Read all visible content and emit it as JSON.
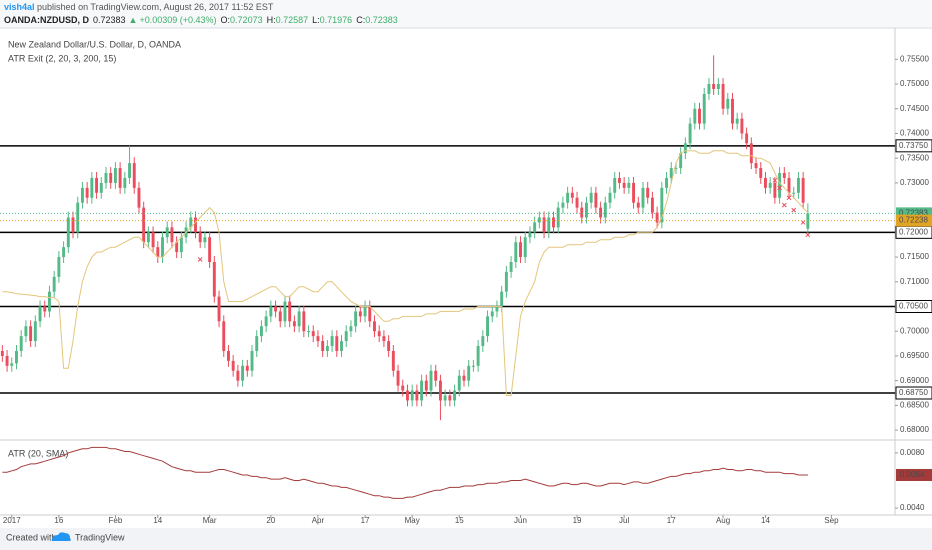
{
  "header": {
    "author": "vish4al",
    "published": " published on TradingView.com, August 26, 2017 11:52 EST",
    "symbol": "OANDA:NZDUSD, D",
    "price": "0.72383",
    "arrow": "▲",
    "change": "+0.00309 (+0.43%)",
    "ohlc": [
      {
        "key": "O:",
        "value": "0.72073"
      },
      {
        "key": "H:",
        "value": "0.72587"
      },
      {
        "key": "L:",
        "value": "0.71976"
      },
      {
        "key": "C:",
        "value": "0.72383"
      }
    ]
  },
  "footer": {
    "created": "Created with",
    "brand": "TradingView"
  },
  "chart_data": {
    "type": "candlestick",
    "title": "New Zealand Dollar/U.S. Dollar, D, OANDA",
    "subtitle": "ATR Exit (2, 20, 3, 200, 15)",
    "color_up": "#53b987",
    "color_down": "#eb4d5c",
    "xlim": [
      -0.5,
      189.5
    ],
    "ylim": [
      0.6785,
      0.7585
    ],
    "xticks": [
      {
        "value": 2,
        "label": "2017"
      },
      {
        "value": 12,
        "label": "16"
      },
      {
        "value": 24,
        "label": "Feb"
      },
      {
        "value": 33,
        "label": "14"
      },
      {
        "value": 44,
        "label": "Mar"
      },
      {
        "value": 57,
        "label": "20"
      },
      {
        "value": 67,
        "label": "Apr"
      },
      {
        "value": 77,
        "label": "17"
      },
      {
        "value": 87,
        "label": "May"
      },
      {
        "value": 97,
        "label": "15"
      },
      {
        "value": 110,
        "label": "Jun"
      },
      {
        "value": 122,
        "label": "19"
      },
      {
        "value": 132,
        "label": "Jul"
      },
      {
        "value": 142,
        "label": "17"
      },
      {
        "value": 153,
        "label": "Aug"
      },
      {
        "value": 162,
        "label": "14"
      },
      {
        "value": 176,
        "label": "Sep"
      }
    ],
    "yticks": [
      {
        "value": 0.755,
        "label": "0.75500"
      },
      {
        "value": 0.75,
        "label": "0.75000"
      },
      {
        "value": 0.745,
        "label": "0.74500"
      },
      {
        "value": 0.74,
        "label": "0.74000"
      },
      {
        "value": 0.735,
        "label": "0.73500"
      },
      {
        "value": 0.73,
        "label": "0.73000"
      },
      {
        "value": 0.715,
        "label": "0.71500"
      },
      {
        "value": 0.71,
        "label": "0.71000"
      },
      {
        "value": 0.7,
        "label": "0.70000"
      },
      {
        "value": 0.695,
        "label": "0.69500"
      },
      {
        "value": 0.69,
        "label": "0.69000"
      },
      {
        "value": 0.685,
        "label": "0.68500"
      },
      {
        "value": 0.68,
        "label": "0.68000"
      }
    ],
    "levels": [
      {
        "value": 0.7375,
        "label": "0.73750"
      },
      {
        "value": 0.72,
        "label": "0.72000"
      },
      {
        "value": 0.705,
        "label": "0.70500"
      },
      {
        "value": 0.6875,
        "label": "0.68750"
      }
    ],
    "last_price": {
      "value": 0.72383,
      "label": "0.72383",
      "color": "#53b987"
    },
    "atr_exit_last": {
      "value": 0.72238,
      "label": "0.72238",
      "color": "#e0a526"
    },
    "open": [
      0.696,
      0.695,
      0.693,
      0.6935,
      0.696,
      0.699,
      0.701,
      0.698,
      0.702,
      0.705,
      0.704,
      0.708,
      0.711,
      0.715,
      0.717,
      0.723,
      0.72,
      0.726,
      0.729,
      0.727,
      0.731,
      0.728,
      0.73,
      0.732,
      0.73,
      0.733,
      0.729,
      0.731,
      0.734,
      0.729,
      0.725,
      0.718,
      0.72,
      0.717,
      0.715,
      0.719,
      0.721,
      0.718,
      0.716,
      0.719,
      0.721,
      0.723,
      0.72,
      0.718,
      0.719,
      0.714,
      0.707,
      0.702,
      0.696,
      0.694,
      0.692,
      0.69,
      0.693,
      0.692,
      0.696,
      0.699,
      0.701,
      0.703,
      0.705,
      0.704,
      0.702,
      0.706,
      0.702,
      0.701,
      0.704,
      0.7,
      0.7,
      0.699,
      0.698,
      0.696,
      0.697,
      0.699,
      0.696,
      0.698,
      0.7,
      0.701,
      0.704,
      0.703,
      0.705,
      0.702,
      0.7,
      0.699,
      0.698,
      0.696,
      0.692,
      0.689,
      0.688,
      0.686,
      0.688,
      0.686,
      0.69,
      0.688,
      0.692,
      0.69,
      0.686,
      0.687,
      0.686,
      0.688,
      0.691,
      0.69,
      0.693,
      0.693,
      0.697,
      0.699,
      0.703,
      0.704,
      0.705,
      0.708,
      0.712,
      0.714,
      0.718,
      0.715,
      0.719,
      0.72,
      0.722,
      0.723,
      0.72,
      0.723,
      0.721,
      0.725,
      0.726,
      0.728,
      0.727,
      0.725,
      0.723,
      0.726,
      0.728,
      0.725,
      0.723,
      0.726,
      0.728,
      0.731,
      0.73,
      0.729,
      0.73,
      0.726,
      0.725,
      0.729,
      0.727,
      0.724,
      0.722,
      0.729,
      0.731,
      0.733,
      0.733,
      0.736,
      0.738,
      0.742,
      0.745,
      0.742,
      0.748,
      0.75,
      0.749,
      0.75,
      0.745,
      0.747,
      0.742,
      0.743,
      0.74,
      0.738,
      0.734,
      0.733,
      0.731,
      0.729,
      0.73,
      0.727,
      0.732,
      0.731,
      0.728,
      0.728,
      0.731,
      0.72073,
      null,
      null,
      null,
      null,
      null
    ],
    "high": [
      0.6972,
      0.6962,
      0.6947,
      0.6972,
      0.7002,
      0.7022,
      0.7022,
      0.7032,
      0.7062,
      0.7062,
      0.7092,
      0.7122,
      0.7162,
      0.7182,
      0.7242,
      0.7242,
      0.7272,
      0.7302,
      0.7302,
      0.7322,
      0.7322,
      0.7312,
      0.7332,
      0.7332,
      0.7342,
      0.7342,
      0.7322,
      0.7375,
      0.7352,
      0.7302,
      0.7262,
      0.7212,
      0.7212,
      0.7182,
      0.7202,
      0.7222,
      0.7222,
      0.7192,
      0.7202,
      0.7222,
      0.7242,
      0.7242,
      0.7212,
      0.7202,
      0.7202,
      0.7152,
      0.7082,
      0.7032,
      0.6972,
      0.6952,
      0.6932,
      0.6942,
      0.6942,
      0.6972,
      0.7002,
      0.7022,
      0.7042,
      0.7062,
      0.7062,
      0.7052,
      0.7072,
      0.7072,
      0.7032,
      0.7052,
      0.7052,
      0.7012,
      0.7012,
      0.7002,
      0.6992,
      0.6982,
      0.7002,
      0.7002,
      0.6992,
      0.7012,
      0.7022,
      0.7052,
      0.7052,
      0.7062,
      0.7062,
      0.7032,
      0.7012,
      0.7002,
      0.6992,
      0.6972,
      0.6932,
      0.6902,
      0.6892,
      0.6892,
      0.6892,
      0.6912,
      0.6912,
      0.6932,
      0.6932,
      0.6912,
      0.6882,
      0.6882,
      0.6892,
      0.6922,
      0.6922,
      0.6942,
      0.6942,
      0.6982,
      0.7002,
      0.7042,
      0.7052,
      0.7062,
      0.7092,
      0.7132,
      0.7152,
      0.7192,
      0.7192,
      0.7202,
      0.7212,
      0.7232,
      0.7242,
      0.7242,
      0.7242,
      0.7242,
      0.7262,
      0.7272,
      0.7292,
      0.7292,
      0.7282,
      0.7262,
      0.7272,
      0.7292,
      0.7292,
      0.7262,
      0.7272,
      0.7292,
      0.7322,
      0.7322,
      0.7312,
      0.7312,
      0.7312,
      0.7272,
      0.7302,
      0.7302,
      0.7282,
      0.7252,
      0.7302,
      0.7322,
      0.7342,
      0.7342,
      0.7372,
      0.7392,
      0.7432,
      0.7462,
      0.7462,
      0.7492,
      0.7512,
      0.7558,
      0.7512,
      0.7512,
      0.7482,
      0.7482,
      0.7442,
      0.7442,
      0.7412,
      0.7392,
      0.7352,
      0.7342,
      0.7322,
      0.7312,
      0.7312,
      0.7332,
      0.7332,
      0.7322,
      0.7292,
      0.7322,
      0.7322,
      0.72587,
      null,
      null,
      null,
      null,
      null
    ],
    "low": [
      0.6938,
      0.6918,
      0.6918,
      0.6923,
      0.6948,
      0.6978,
      0.6968,
      0.6968,
      0.7008,
      0.7028,
      0.7028,
      0.7068,
      0.7098,
      0.7138,
      0.7158,
      0.7188,
      0.7188,
      0.7248,
      0.7258,
      0.7258,
      0.7268,
      0.7268,
      0.7288,
      0.7288,
      0.7288,
      0.7278,
      0.7278,
      0.7298,
      0.7278,
      0.7238,
      0.7168,
      0.7168,
      0.7158,
      0.7138,
      0.7138,
      0.7178,
      0.7168,
      0.7148,
      0.7148,
      0.7178,
      0.7198,
      0.7188,
      0.7168,
      0.7168,
      0.7128,
      0.7058,
      0.7008,
      0.6948,
      0.6928,
      0.6908,
      0.6888,
      0.6888,
      0.6908,
      0.6908,
      0.6948,
      0.6978,
      0.6998,
      0.7018,
      0.7028,
      0.7008,
      0.7008,
      0.7008,
      0.6998,
      0.6998,
      0.6988,
      0.6988,
      0.6978,
      0.6968,
      0.6948,
      0.6948,
      0.6958,
      0.6948,
      0.6948,
      0.6968,
      0.6988,
      0.6998,
      0.7018,
      0.7018,
      0.7008,
      0.6988,
      0.6978,
      0.6968,
      0.6948,
      0.6908,
      0.6878,
      0.6868,
      0.6848,
      0.6848,
      0.6848,
      0.6848,
      0.6868,
      0.6868,
      0.6888,
      0.682,
      0.6848,
      0.6848,
      0.6848,
      0.6868,
      0.6888,
      0.6888,
      0.6918,
      0.6918,
      0.6958,
      0.6978,
      0.7018,
      0.7028,
      0.7038,
      0.7068,
      0.7108,
      0.7128,
      0.7138,
      0.7138,
      0.7178,
      0.7188,
      0.7208,
      0.7188,
      0.7188,
      0.7198,
      0.7198,
      0.7238,
      0.7248,
      0.7258,
      0.7238,
      0.7218,
      0.7218,
      0.7248,
      0.7238,
      0.7218,
      0.7218,
      0.7248,
      0.7268,
      0.7288,
      0.7278,
      0.7278,
      0.7248,
      0.7238,
      0.7238,
      0.7258,
      0.7228,
      0.7208,
      0.7208,
      0.7278,
      0.7298,
      0.7318,
      0.7318,
      0.7348,
      0.7368,
      0.7408,
      0.7408,
      0.7408,
      0.7468,
      0.7478,
      0.7478,
      0.7438,
      0.7438,
      0.7408,
      0.7408,
      0.7388,
      0.7368,
      0.7328,
      0.7318,
      0.7298,
      0.7278,
      0.7278,
      0.7258,
      0.7258,
      0.7298,
      0.7268,
      0.7268,
      0.7268,
      0.7248,
      0.71976,
      null,
      null,
      null,
      null,
      null
    ],
    "close": [
      0.695,
      0.693,
      0.6935,
      0.696,
      0.699,
      0.701,
      0.698,
      0.702,
      0.705,
      0.704,
      0.708,
      0.711,
      0.715,
      0.717,
      0.723,
      0.72,
      0.726,
      0.729,
      0.727,
      0.731,
      0.728,
      0.73,
      0.732,
      0.73,
      0.733,
      0.729,
      0.731,
      0.734,
      0.729,
      0.725,
      0.718,
      0.72,
      0.717,
      0.715,
      0.719,
      0.721,
      0.718,
      0.716,
      0.719,
      0.721,
      0.723,
      0.72,
      0.718,
      0.719,
      0.714,
      0.707,
      0.702,
      0.696,
      0.694,
      0.692,
      0.69,
      0.693,
      0.692,
      0.696,
      0.699,
      0.701,
      0.703,
      0.705,
      0.704,
      0.702,
      0.706,
      0.702,
      0.701,
      0.704,
      0.7,
      0.7,
      0.699,
      0.698,
      0.696,
      0.697,
      0.699,
      0.696,
      0.698,
      0.7,
      0.701,
      0.704,
      0.703,
      0.705,
      0.702,
      0.7,
      0.699,
      0.698,
      0.696,
      0.692,
      0.689,
      0.688,
      0.686,
      0.688,
      0.686,
      0.69,
      0.688,
      0.692,
      0.69,
      0.686,
      0.687,
      0.686,
      0.688,
      0.691,
      0.69,
      0.693,
      0.693,
      0.697,
      0.699,
      0.703,
      0.704,
      0.705,
      0.708,
      0.712,
      0.714,
      0.718,
      0.715,
      0.719,
      0.72,
      0.722,
      0.723,
      0.72,
      0.723,
      0.721,
      0.725,
      0.726,
      0.728,
      0.727,
      0.725,
      0.723,
      0.726,
      0.728,
      0.725,
      0.723,
      0.726,
      0.728,
      0.731,
      0.73,
      0.729,
      0.73,
      0.726,
      0.725,
      0.729,
      0.727,
      0.724,
      0.722,
      0.729,
      0.731,
      0.733,
      0.733,
      0.736,
      0.738,
      0.742,
      0.745,
      0.742,
      0.748,
      0.75,
      0.749,
      0.75,
      0.745,
      0.747,
      0.742,
      0.743,
      0.74,
      0.738,
      0.734,
      0.733,
      0.731,
      0.729,
      0.73,
      0.727,
      0.732,
      0.731,
      0.728,
      0.728,
      0.731,
      0.726,
      0.72383,
      null,
      null,
      null,
      null,
      null
    ],
    "atr_exit": {
      "color": "#e3c67a",
      "values": [
        0.708,
        0.708,
        0.7078,
        0.7076,
        0.7075,
        0.7074,
        0.7073,
        0.7072,
        0.707,
        0.707,
        0.7068,
        0.7068,
        0.706,
        0.6925,
        0.6925,
        0.698,
        0.705,
        0.71,
        0.713,
        0.715,
        0.716,
        0.716,
        0.7165,
        0.717,
        0.717,
        0.7175,
        0.718,
        0.7185,
        0.719,
        0.719,
        0.718,
        0.717,
        0.716,
        0.715,
        0.715,
        0.716,
        0.717,
        0.718,
        0.719,
        0.72,
        0.721,
        0.722,
        0.723,
        0.724,
        0.725,
        0.724,
        0.72,
        0.71,
        0.706,
        0.706,
        0.706,
        0.706,
        0.7065,
        0.707,
        0.7075,
        0.708,
        0.7085,
        0.709,
        0.709,
        0.708,
        0.707,
        0.707,
        0.708,
        0.709,
        0.709,
        0.7085,
        0.708,
        0.708,
        0.709,
        0.71,
        0.71,
        0.709,
        0.708,
        0.707,
        0.706,
        0.7055,
        0.705,
        0.705,
        0.705,
        0.704,
        0.703,
        0.702,
        0.702,
        0.7025,
        0.7025,
        0.703,
        0.703,
        0.703,
        0.703,
        0.703,
        0.7035,
        0.7035,
        0.7035,
        0.704,
        0.704,
        0.704,
        0.704,
        0.704,
        0.7045,
        0.7045,
        0.7045,
        0.705,
        0.705,
        0.705,
        0.705,
        0.705,
        0.705,
        0.687,
        0.687,
        0.695,
        0.703,
        0.706,
        0.708,
        0.71,
        0.714,
        0.716,
        0.717,
        0.717,
        0.717,
        0.717,
        0.7175,
        0.7175,
        0.7175,
        0.7175,
        0.718,
        0.718,
        0.718,
        0.7185,
        0.7185,
        0.7185,
        0.719,
        0.719,
        0.719,
        0.7195,
        0.7195,
        0.72,
        0.72,
        0.72,
        0.72,
        0.721,
        0.723,
        0.726,
        0.73,
        0.734,
        0.736,
        0.7365,
        0.7365,
        0.7365,
        0.736,
        0.736,
        0.736,
        0.7365,
        0.7365,
        0.7365,
        0.736,
        0.736,
        0.736,
        0.7355,
        0.7355,
        0.7355,
        0.735,
        0.735,
        0.7345,
        0.734,
        0.732,
        0.73,
        0.729,
        0.728,
        0.727,
        0.726,
        0.725,
        0.724,
        null,
        null,
        null,
        null,
        null
      ]
    },
    "signals": {
      "color": "#eb4d5c",
      "points": [
        {
          "index": 42,
          "value": 0.7145
        },
        {
          "index": 164,
          "value": 0.7305
        },
        {
          "index": 165,
          "value": 0.729
        },
        {
          "index": 166,
          "value": 0.7255
        },
        {
          "index": 167,
          "value": 0.727
        },
        {
          "index": 168,
          "value": 0.7245
        },
        {
          "index": 170,
          "value": 0.722
        },
        {
          "index": 171,
          "value": 0.7195
        }
      ]
    },
    "atr": {
      "title": "ATR (20, SMA)",
      "color": "#a33b3b",
      "ylim": [
        0.0035,
        0.0085
      ],
      "yticks": [
        {
          "value": 0.008,
          "label": "0.0080"
        },
        {
          "value": 0.004,
          "label": "0.0040"
        }
      ],
      "last": {
        "value": 0.0064,
        "label": "0.0064"
      },
      "values": [
        0.0066,
        0.0066,
        0.0067,
        0.0068,
        0.007,
        0.0071,
        0.0072,
        0.0072,
        0.0073,
        0.0074,
        0.0075,
        0.0076,
        0.0077,
        0.0078,
        0.008,
        0.0081,
        0.0082,
        0.0083,
        0.0083,
        0.0084,
        0.0084,
        0.0084,
        0.0084,
        0.0083,
        0.0083,
        0.0082,
        0.0081,
        0.0081,
        0.008,
        0.0079,
        0.0078,
        0.0077,
        0.0076,
        0.0075,
        0.0074,
        0.0072,
        0.007,
        0.0069,
        0.0068,
        0.0067,
        0.0067,
        0.0066,
        0.0066,
        0.0066,
        0.0066,
        0.0067,
        0.0068,
        0.0068,
        0.0067,
        0.0066,
        0.0065,
        0.0064,
        0.0064,
        0.0063,
        0.0063,
        0.0062,
        0.0062,
        0.0061,
        0.0061,
        0.0061,
        0.0062,
        0.0061,
        0.006,
        0.006,
        0.0061,
        0.006,
        0.0059,
        0.0058,
        0.0058,
        0.0057,
        0.0056,
        0.0056,
        0.0055,
        0.0055,
        0.0054,
        0.0053,
        0.0052,
        0.0051,
        0.005,
        0.0049,
        0.0049,
        0.0048,
        0.0048,
        0.0047,
        0.0047,
        0.0047,
        0.0048,
        0.0048,
        0.0049,
        0.005,
        0.0051,
        0.0052,
        0.0053,
        0.0053,
        0.0054,
        0.0055,
        0.0055,
        0.0055,
        0.0056,
        0.0056,
        0.0056,
        0.0057,
        0.0057,
        0.0058,
        0.0058,
        0.0058,
        0.0059,
        0.0059,
        0.006,
        0.006,
        0.006,
        0.0061,
        0.006,
        0.0059,
        0.0058,
        0.0057,
        0.0056,
        0.0056,
        0.0057,
        0.0058,
        0.0058,
        0.0057,
        0.0057,
        0.0058,
        0.0058,
        0.0057,
        0.0056,
        0.0056,
        0.0057,
        0.0058,
        0.0058,
        0.0058,
        0.0057,
        0.0058,
        0.0059,
        0.0059,
        0.0058,
        0.0058,
        0.0059,
        0.006,
        0.0061,
        0.0062,
        0.0063,
        0.0063,
        0.0064,
        0.0065,
        0.0065,
        0.0066,
        0.0066,
        0.0067,
        0.0067,
        0.0068,
        0.0068,
        0.0069,
        0.0068,
        0.0068,
        0.0067,
        0.0067,
        0.0068,
        0.0068,
        0.0067,
        0.0067,
        0.0066,
        0.0066,
        0.0066,
        0.0066,
        0.0065,
        0.0065,
        0.0065,
        0.0064,
        0.0064,
        0.0064,
        null,
        null,
        null,
        null,
        null
      ]
    }
  }
}
